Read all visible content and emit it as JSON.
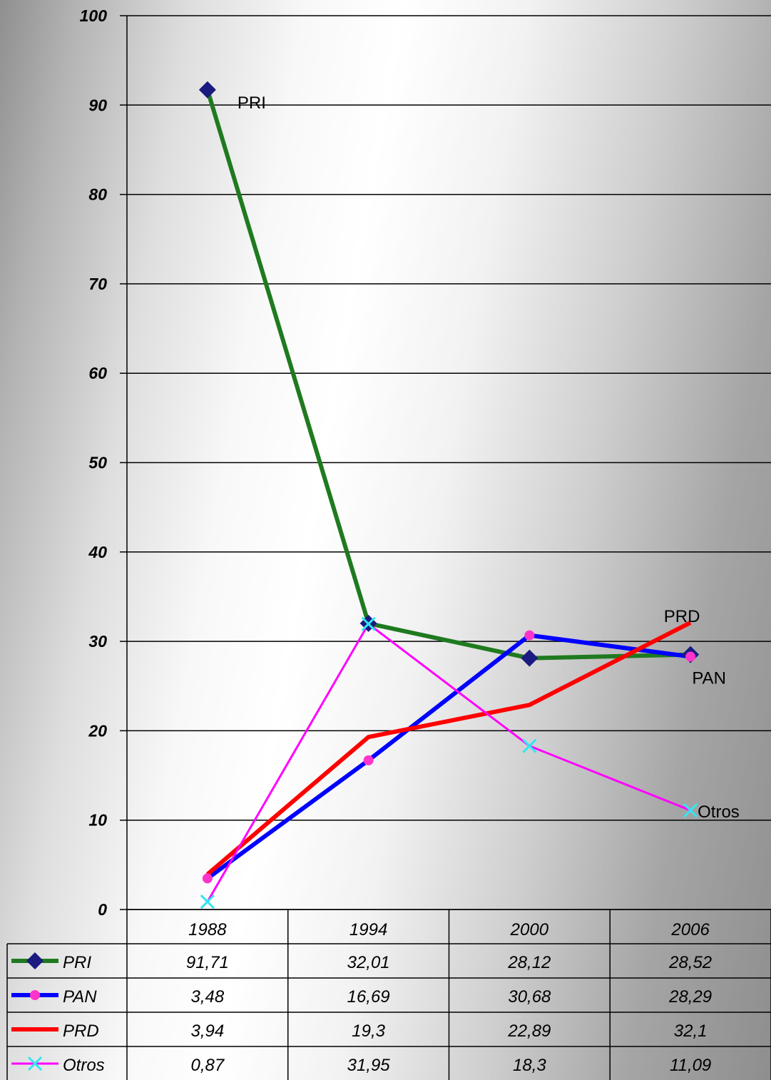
{
  "chart_data": {
    "type": "line",
    "categories": [
      "1988",
      "1994",
      "2000",
      "2006"
    ],
    "ylim": [
      0,
      100
    ],
    "yticks": [
      "0",
      "10",
      "20",
      "30",
      "40",
      "50",
      "60",
      "70",
      "80",
      "90",
      "100"
    ],
    "grid": true,
    "legend": "data-table-bottom",
    "series": [
      {
        "name": "PRI",
        "values": [
          91.71,
          32.01,
          28.12,
          28.52
        ],
        "labels": [
          "91,71",
          "32,01",
          "28,12",
          "28,52"
        ],
        "color": "#1f7a1f",
        "marker": "diamond",
        "marker_color": "#1a1a80",
        "end_label": "PRI"
      },
      {
        "name": "PAN",
        "values": [
          3.48,
          16.69,
          30.68,
          28.29
        ],
        "labels": [
          "3,48",
          "16,69",
          "30,68",
          "28,29"
        ],
        "color": "#0000ff",
        "marker": "circle",
        "marker_color": "#ff33cc",
        "end_label": "PAN"
      },
      {
        "name": "PRD",
        "values": [
          3.94,
          19.3,
          22.89,
          32.1
        ],
        "labels": [
          "3,94",
          "19,3",
          "22,89",
          "32,1"
        ],
        "color": "#ff0000",
        "marker": "none",
        "marker_color": "#ff0000",
        "end_label": "PRD"
      },
      {
        "name": "Otros",
        "values": [
          0.87,
          31.95,
          18.3,
          11.09
        ],
        "labels": [
          "0,87",
          "31,95",
          "18,3",
          "11,09"
        ],
        "color": "#ff00ff",
        "marker": "x",
        "marker_color": "#33e6f2",
        "end_label": "Otros"
      }
    ]
  }
}
